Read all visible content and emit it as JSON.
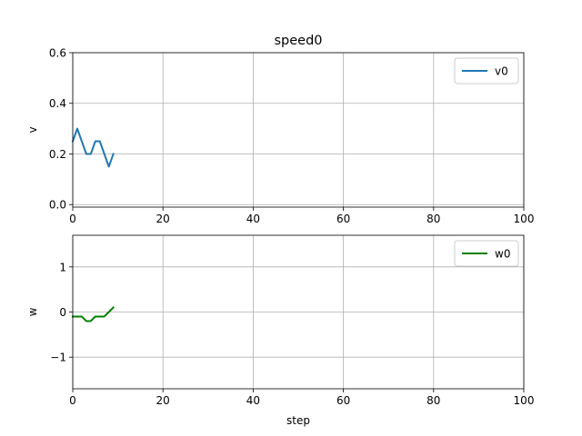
{
  "figure_title": "speed0",
  "chart_data": [
    {
      "type": "line",
      "title": "speed0",
      "xlabel": "step",
      "ylabel": "v",
      "xlim": [
        0,
        100
      ],
      "ylim": [
        -0.01,
        0.6
      ],
      "xticks": [
        0,
        20,
        40,
        60,
        80,
        100
      ],
      "yticks": [
        0.0,
        0.2,
        0.4,
        0.6
      ],
      "ytick_labels": [
        "0.0",
        "0.2",
        "0.4",
        "0.6"
      ],
      "grid": true,
      "legend_position": "top-right",
      "series": [
        {
          "name": "v0",
          "color": "#1f77b4",
          "x": [
            0,
            1,
            2,
            3,
            4,
            5,
            6,
            7,
            8,
            9
          ],
          "y": [
            0.25,
            0.3,
            0.25,
            0.2,
            0.2,
            0.25,
            0.25,
            0.2,
            0.15,
            0.2
          ]
        }
      ]
    },
    {
      "type": "line",
      "title": "",
      "xlabel": "step",
      "ylabel": "w",
      "xlim": [
        0,
        100
      ],
      "ylim": [
        -1.7,
        1.7
      ],
      "xticks": [
        0,
        20,
        40,
        60,
        80,
        100
      ],
      "yticks": [
        -1,
        0,
        1
      ],
      "ytick_labels": [
        "−1",
        "0",
        "1"
      ],
      "grid": true,
      "legend_position": "top-right",
      "series": [
        {
          "name": "w0",
          "color": "#008000",
          "x": [
            0,
            1,
            2,
            3,
            4,
            5,
            6,
            7,
            8,
            9
          ],
          "y": [
            -0.1,
            -0.1,
            -0.1,
            -0.2,
            -0.2,
            -0.1,
            -0.1,
            -0.1,
            0.0,
            0.1
          ]
        }
      ]
    }
  ]
}
